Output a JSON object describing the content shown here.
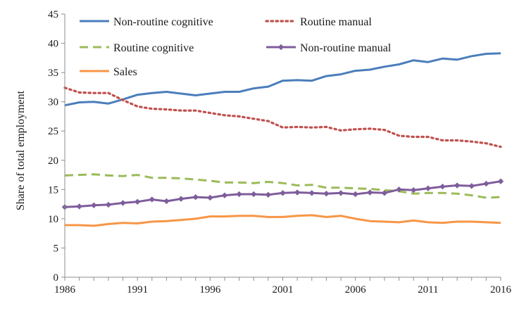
{
  "chart_data": {
    "type": "line",
    "title": "",
    "xlabel": "",
    "ylabel": "Share of total employment",
    "ylim": [
      0,
      45
    ],
    "yticks": [
      0,
      5,
      10,
      15,
      20,
      25,
      30,
      35,
      40,
      45
    ],
    "xlim": [
      1986,
      2016
    ],
    "xticks": [
      1986,
      1991,
      1996,
      2001,
      2006,
      2011,
      2016
    ],
    "grid": false,
    "legend_position": "top",
    "x": [
      1986,
      1987,
      1988,
      1989,
      1990,
      1991,
      1992,
      1993,
      1994,
      1995,
      1996,
      1997,
      1998,
      1999,
      2000,
      2001,
      2002,
      2003,
      2004,
      2005,
      2006,
      2007,
      2008,
      2009,
      2010,
      2011,
      2012,
      2013,
      2014,
      2015,
      2016
    ],
    "series": [
      {
        "name": "Non-routine cognitive",
        "color": "#4a7ebb",
        "style": "solid",
        "values": [
          29.4,
          29.9,
          30.0,
          29.7,
          30.4,
          31.2,
          31.5,
          31.7,
          31.4,
          31.1,
          31.4,
          31.7,
          31.7,
          32.3,
          32.6,
          33.6,
          33.7,
          33.6,
          34.4,
          34.7,
          35.3,
          35.5,
          36.0,
          36.4,
          37.1,
          36.8,
          37.4,
          37.2,
          37.8,
          38.2,
          38.3
        ]
      },
      {
        "name": "Routine manual",
        "color": "#c0504d",
        "style": "dotted",
        "values": [
          32.4,
          31.6,
          31.5,
          31.5,
          30.3,
          29.2,
          28.8,
          28.7,
          28.5,
          28.5,
          28.1,
          27.7,
          27.5,
          27.1,
          26.7,
          25.6,
          25.7,
          25.6,
          25.7,
          25.1,
          25.3,
          25.4,
          25.2,
          24.2,
          24.0,
          24.0,
          23.4,
          23.4,
          23.2,
          22.9,
          22.3
        ]
      },
      {
        "name": "Routine cognitive",
        "color": "#9bbb59",
        "style": "dashed",
        "values": [
          17.4,
          17.5,
          17.6,
          17.4,
          17.3,
          17.5,
          17.0,
          17.0,
          16.9,
          16.7,
          16.5,
          16.2,
          16.2,
          16.1,
          16.3,
          16.1,
          15.7,
          15.8,
          15.3,
          15.3,
          15.2,
          15.1,
          14.9,
          14.7,
          14.3,
          14.4,
          14.4,
          14.3,
          14.0,
          13.6,
          13.7
        ]
      },
      {
        "name": "Non-routine manual",
        "color": "#7e5d9b",
        "style": "solid-marker",
        "values": [
          12.0,
          12.1,
          12.3,
          12.4,
          12.7,
          12.9,
          13.3,
          13.0,
          13.4,
          13.7,
          13.6,
          14.0,
          14.2,
          14.2,
          14.1,
          14.4,
          14.5,
          14.4,
          14.3,
          14.4,
          14.2,
          14.5,
          14.4,
          15.0,
          14.9,
          15.2,
          15.5,
          15.7,
          15.6,
          16.0,
          16.4
        ]
      },
      {
        "name": "Sales",
        "color": "#f79646",
        "style": "solid",
        "values": [
          8.9,
          8.9,
          8.8,
          9.1,
          9.3,
          9.2,
          9.5,
          9.6,
          9.8,
          10.0,
          10.4,
          10.4,
          10.5,
          10.5,
          10.3,
          10.3,
          10.5,
          10.6,
          10.3,
          10.5,
          10.0,
          9.6,
          9.5,
          9.4,
          9.7,
          9.4,
          9.3,
          9.5,
          9.5,
          9.4,
          9.3
        ]
      }
    ]
  }
}
